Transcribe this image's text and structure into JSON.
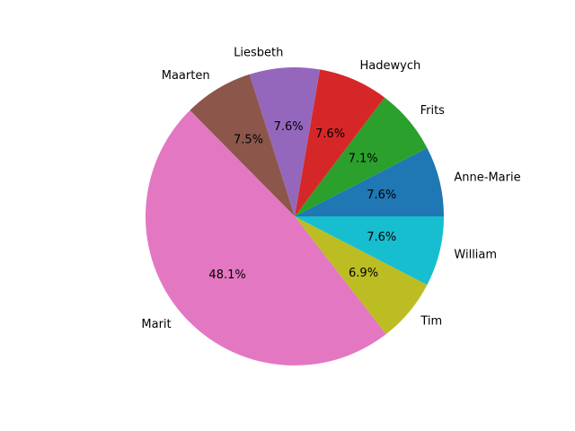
{
  "chart_data": {
    "type": "pie",
    "start_angle_deg": 0,
    "direction": "counterclockwise",
    "slices": [
      {
        "label": "Anne-Marie",
        "percent": 7.6,
        "pct_text": "7.6%",
        "color": "#1f77b4"
      },
      {
        "label": "Frits",
        "percent": 7.1,
        "pct_text": "7.1%",
        "color": "#2ca02c"
      },
      {
        "label": "Hadewych",
        "percent": 7.6,
        "pct_text": "7.6%",
        "color": "#d62728"
      },
      {
        "label": "Liesbeth",
        "percent": 7.6,
        "pct_text": "7.6%",
        "color": "#9467bd"
      },
      {
        "label": "Maarten",
        "percent": 7.5,
        "pct_text": "7.5%",
        "color": "#8c564b"
      },
      {
        "label": "Marit",
        "percent": 48.1,
        "pct_text": "48.1%",
        "color": "#e377c2"
      },
      {
        "label": "Tim",
        "percent": 6.9,
        "pct_text": "6.9%",
        "color": "#bcbd22"
      },
      {
        "label": "William",
        "percent": 7.6,
        "pct_text": "7.6%",
        "color": "#17becf"
      }
    ]
  }
}
